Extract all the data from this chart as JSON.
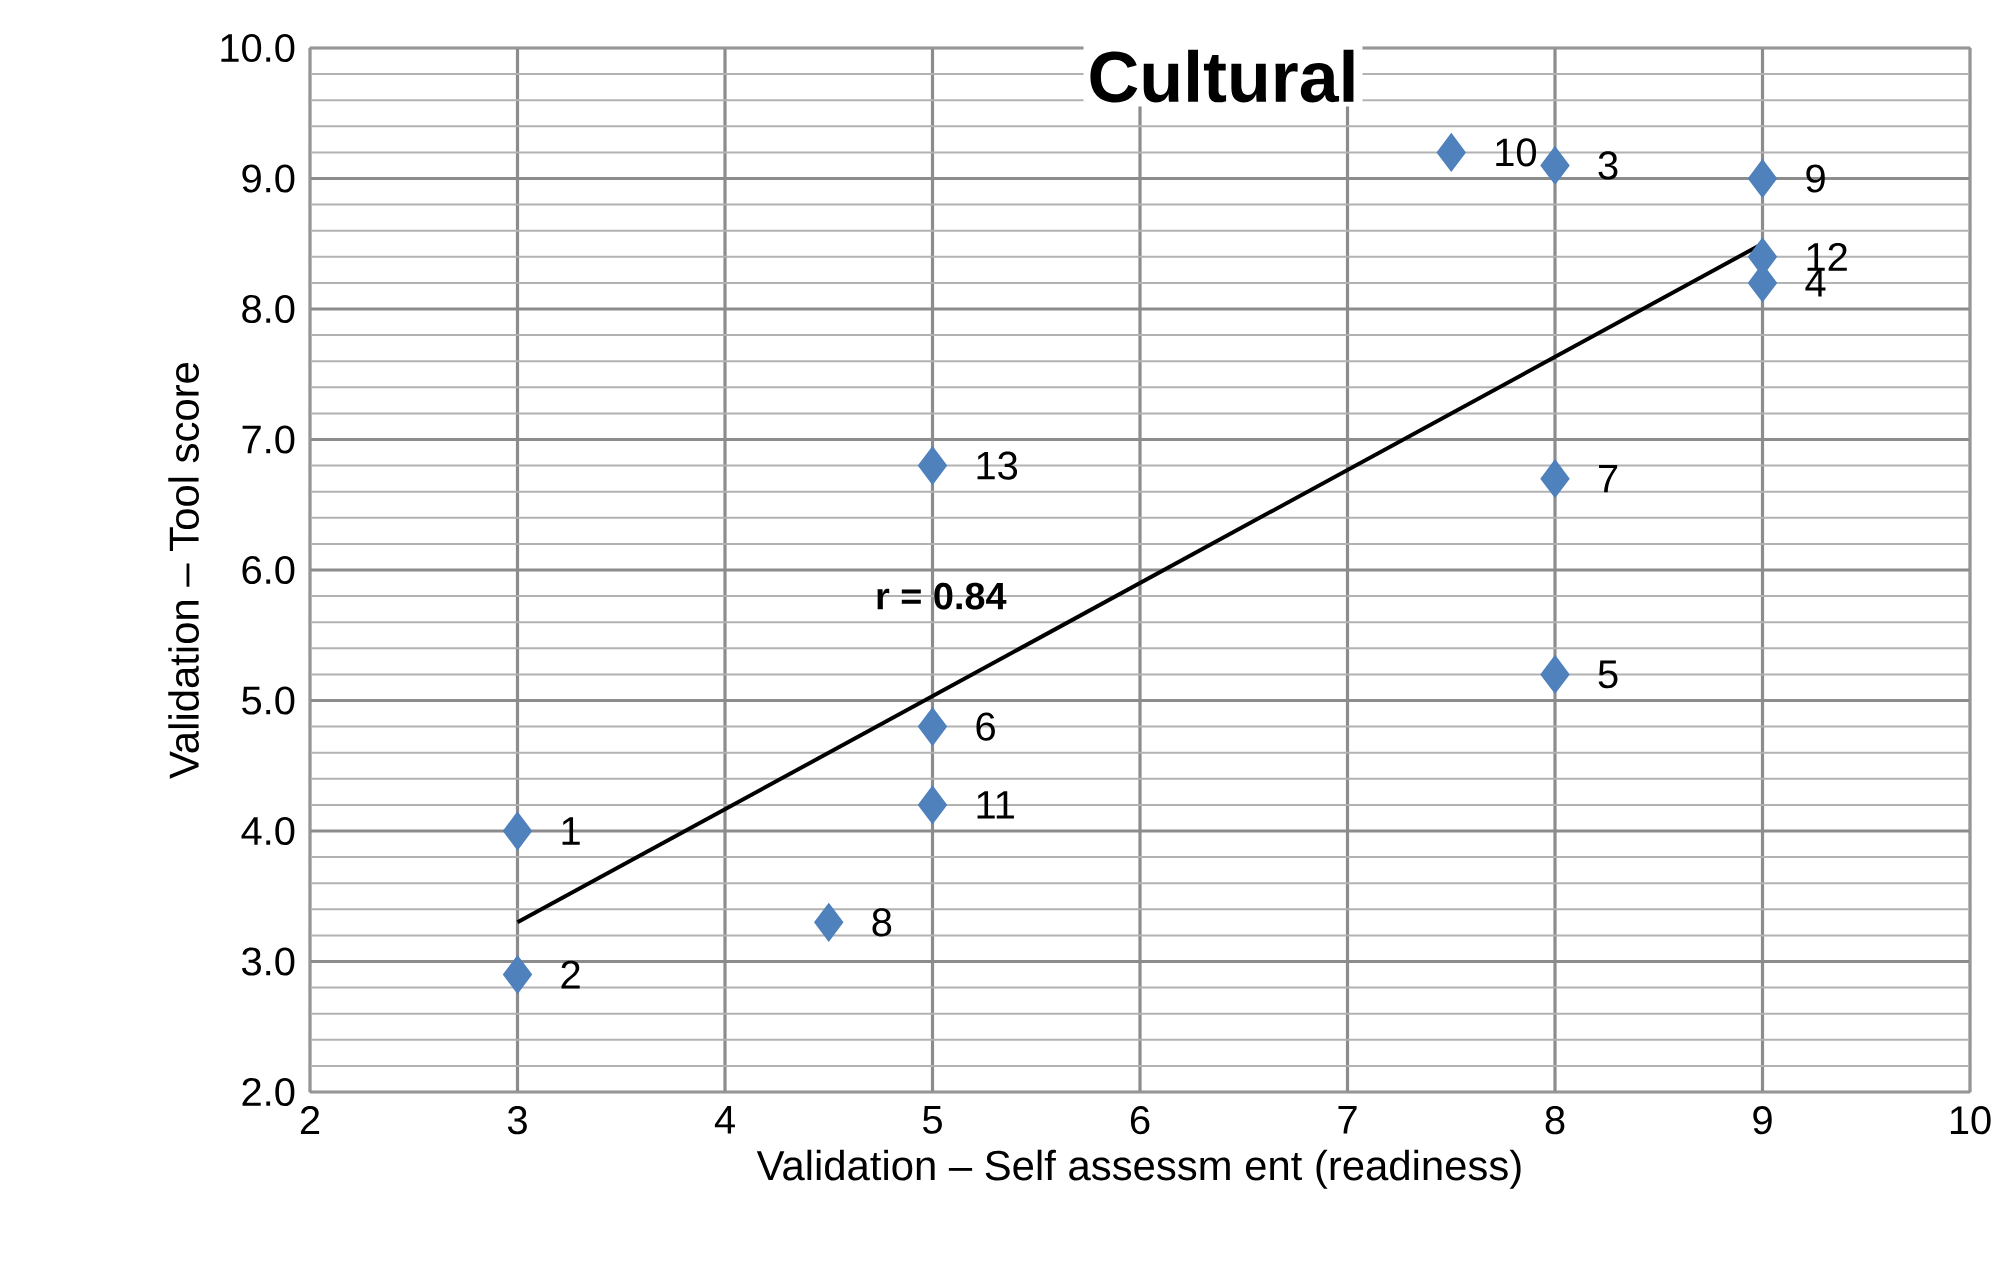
{
  "chart_data": {
    "type": "scatter",
    "title": "Cultural",
    "xlabel": "Validation – Self assessm ent (readiness)",
    "ylabel": "Validation – Tool score",
    "xlim": [
      2,
      10
    ],
    "ylim": [
      2,
      10
    ],
    "xticks": [
      2,
      3,
      4,
      5,
      6,
      7,
      8,
      9,
      10
    ],
    "yticks": [
      {
        "value": 2,
        "label": "2.0"
      },
      {
        "value": 3,
        "label": "3.0"
      },
      {
        "value": 4,
        "label": "4.0"
      },
      {
        "value": 5,
        "label": "5.0"
      },
      {
        "value": 6,
        "label": "6.0"
      },
      {
        "value": 7,
        "label": "7.0"
      },
      {
        "value": 8,
        "label": "8.0"
      },
      {
        "value": 9,
        "label": "9.0"
      },
      {
        "value": 10,
        "label": "10.0"
      }
    ],
    "grid": true,
    "series": [
      {
        "color": "#4f81bd",
        "marker": "diamond",
        "x": [
          3,
          3,
          8,
          9,
          8,
          5,
          8,
          4.5,
          9,
          7.5,
          5,
          9,
          5
        ],
        "values": [
          4.0,
          2.9,
          9.1,
          8.2,
          5.2,
          4.8,
          6.7,
          3.3,
          9.0,
          9.2,
          4.2,
          8.4,
          6.8
        ]
      },
      {
        "type": "line",
        "color": "#000000",
        "marker": "none",
        "line_style": "solid",
        "x": [
          3,
          9
        ],
        "values": [
          3.3,
          8.5
        ]
      }
    ],
    "annotations": [
      {
        "text": "1",
        "x": 3,
        "y": 4.0
      },
      {
        "text": "2",
        "x": 3,
        "y": 2.9
      },
      {
        "text": "3",
        "x": 8,
        "y": 9.1
      },
      {
        "text": "4",
        "x": 9,
        "y": 8.2
      },
      {
        "text": "5",
        "x": 8,
        "y": 5.2
      },
      {
        "text": "6",
        "x": 5,
        "y": 4.8
      },
      {
        "text": "7",
        "x": 8,
        "y": 6.7
      },
      {
        "text": "8",
        "x": 4.5,
        "y": 3.3
      },
      {
        "text": "9",
        "x": 9,
        "y": 9.0
      },
      {
        "text": "10",
        "x": 7.5,
        "y": 9.2
      },
      {
        "text": "11",
        "x": 5,
        "y": 4.2
      },
      {
        "text": "12",
        "x": 9,
        "y": 8.4
      },
      {
        "text": "13",
        "x": 5,
        "y": 6.8
      },
      "r = 0.84"
    ]
  }
}
